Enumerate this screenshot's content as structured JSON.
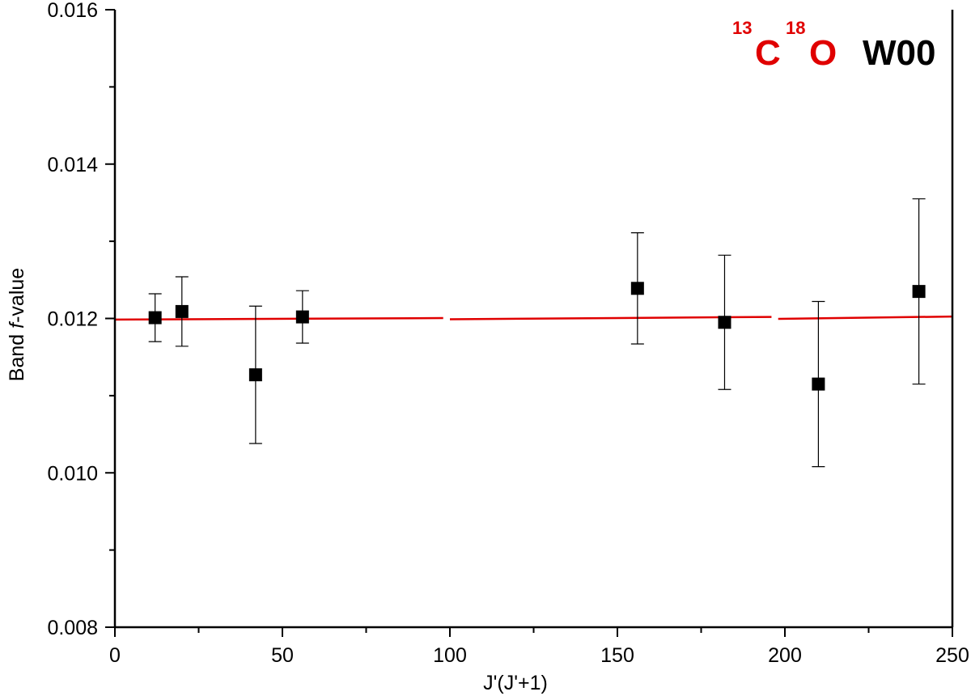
{
  "chart_data": {
    "type": "scatter",
    "title": "",
    "xlabel": "J'(J'+1)",
    "ylabel": "Band f-value",
    "ylabel_parts": {
      "prefix": "Band ",
      "italic": "f",
      "suffix": "-value"
    },
    "xlim": [
      0,
      250
    ],
    "ylim": [
      0.008,
      0.016
    ],
    "x_ticks": [
      0,
      50,
      100,
      150,
      200,
      250
    ],
    "x_tick_labels": [
      "0",
      "50",
      "100",
      "150",
      "200",
      "250"
    ],
    "y_ticks": [
      0.008,
      0.01,
      0.012,
      0.014,
      0.016
    ],
    "y_tick_labels": [
      "0.008",
      "0.010",
      "0.012",
      "0.014",
      "0.016"
    ],
    "grid": false,
    "series": [
      {
        "marker": "square",
        "color": "#000000",
        "points": [
          {
            "x": 12,
            "y": 0.01201,
            "err": 0.00031
          },
          {
            "x": 20,
            "y": 0.01209,
            "err": 0.00045
          },
          {
            "x": 42,
            "y": 0.01127,
            "err": 0.00089
          },
          {
            "x": 56,
            "y": 0.01202,
            "err": 0.00034
          },
          {
            "x": 156,
            "y": 0.01239,
            "err": 0.00072
          },
          {
            "x": 182,
            "y": 0.01195,
            "err": 0.00087
          },
          {
            "x": 210,
            "y": 0.01115,
            "err": 0.00107
          },
          {
            "x": 240,
            "y": 0.01235,
            "err": 0.0012
          }
        ]
      }
    ],
    "fit_line": {
      "color": "#e00000",
      "segments": [
        {
          "x": [
            0,
            98
          ],
          "y": [
            0.011985,
            0.012005
          ]
        },
        {
          "x": [
            100,
            196
          ],
          "y": [
            0.01199,
            0.01202
          ]
        },
        {
          "x": [
            198,
            250
          ],
          "y": [
            0.011995,
            0.012025
          ]
        }
      ]
    },
    "annotation": {
      "sup1": "13",
      "elem1": "C",
      "sup2": "18",
      "elem2": "O",
      "label": "W00",
      "isotope_color": "#e00000",
      "label_color": "#000000"
    }
  }
}
